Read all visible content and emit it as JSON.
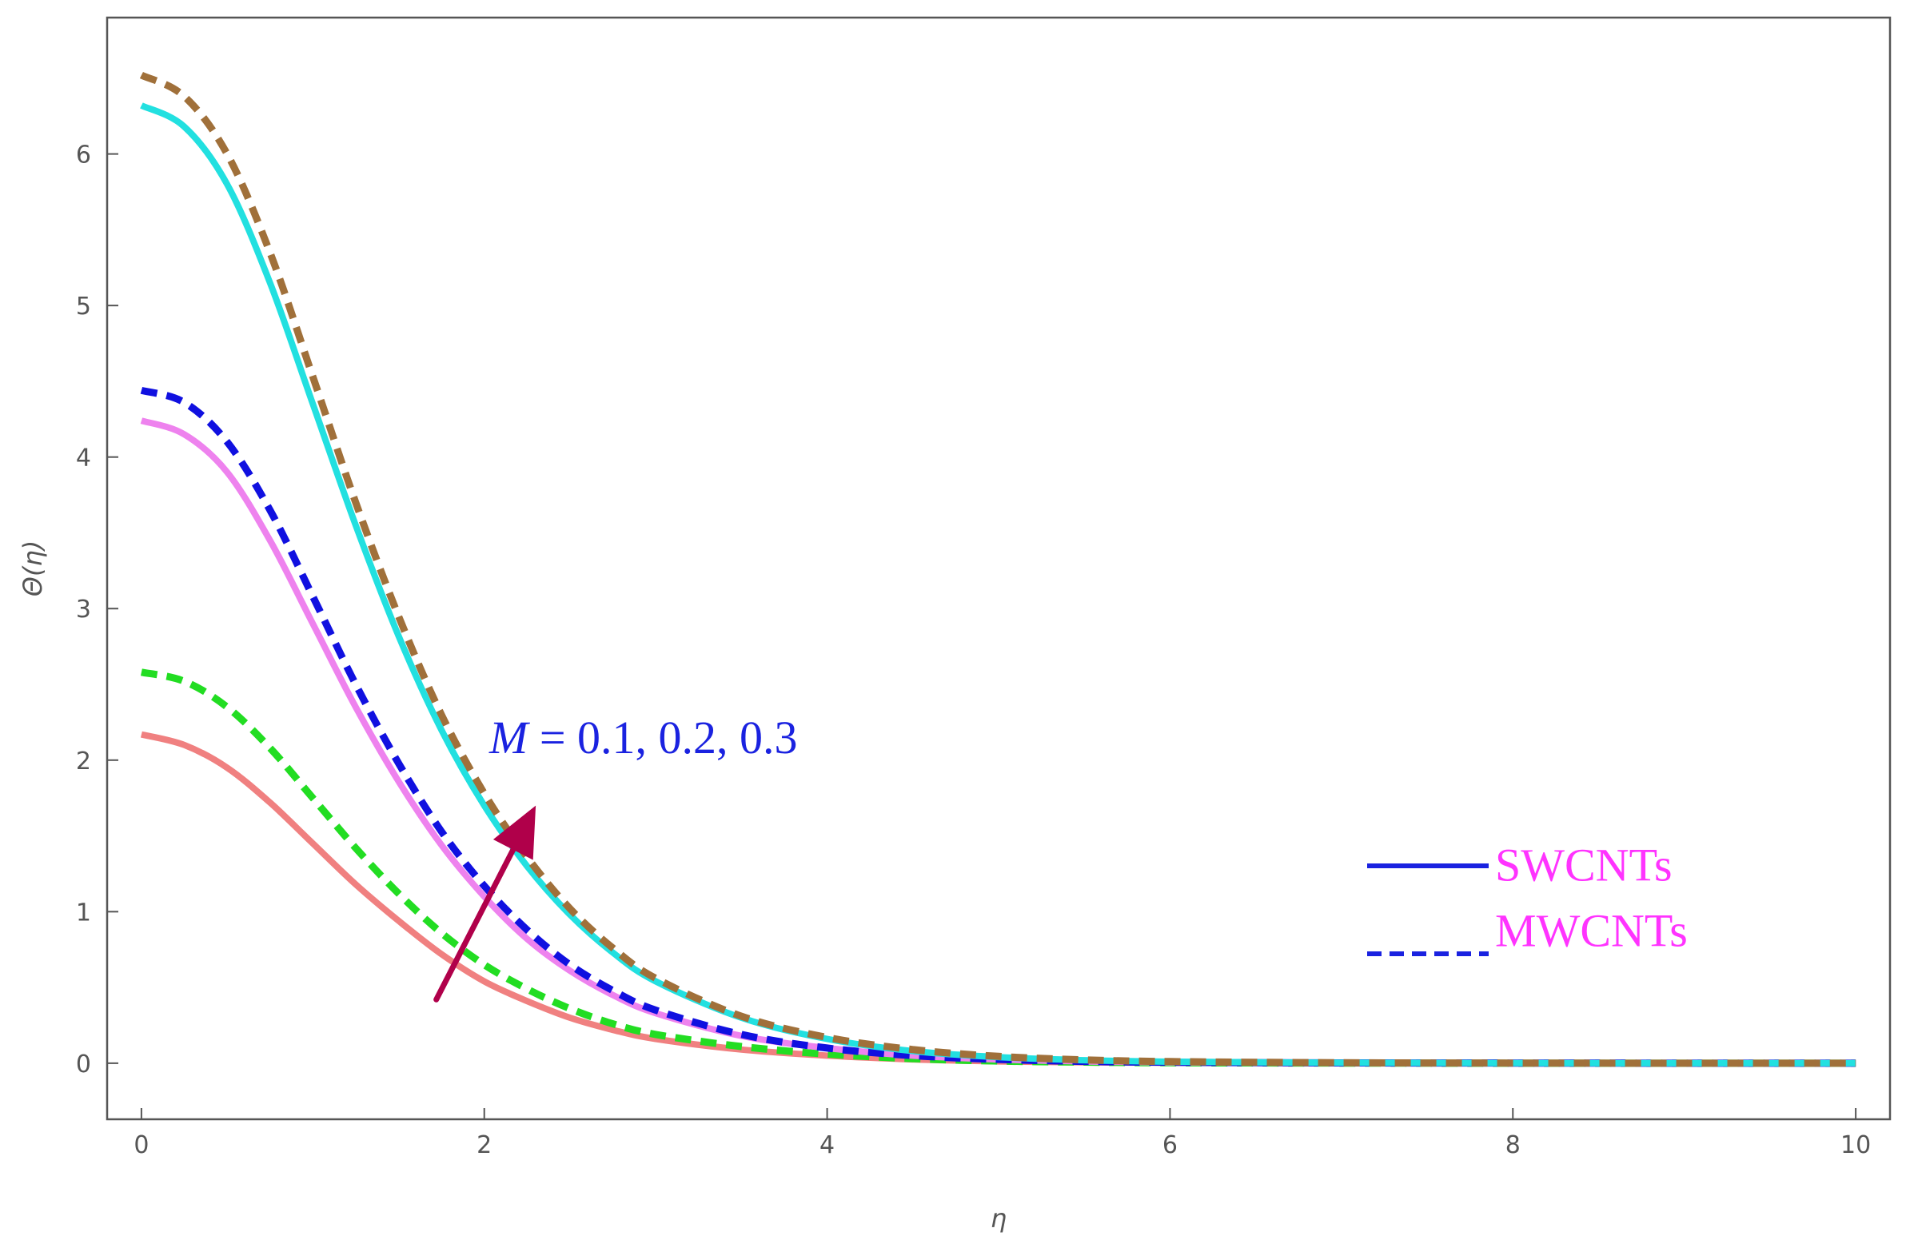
{
  "chart_data": {
    "type": "line",
    "title": "",
    "xlabel": "η",
    "ylabel": "Θ(η)",
    "xlim": [
      -0.2,
      10.2
    ],
    "ylim": [
      -0.37,
      6.9
    ],
    "xticks": [
      0,
      2,
      4,
      6,
      8,
      10
    ],
    "yticks": [
      0,
      1,
      2,
      3,
      4,
      5,
      6
    ],
    "grid": false,
    "legend": {
      "placement": "right",
      "entries": [
        {
          "name": "SWCNTs",
          "line_color": "#1a22e0",
          "style": "solid",
          "text_color": "#ff33ff"
        },
        {
          "name": "MWCNTs",
          "line_color": "#1a22e0",
          "style": "dashed",
          "text_color": "#ff33ff"
        }
      ]
    },
    "annotation": {
      "symbol": "M",
      "text": " = 0.1, 0.2, 0.3",
      "color": "#1a22e0",
      "arrow_color": "#b0004a",
      "arrow_from": [
        1.72,
        0.42
      ],
      "arrow_to": [
        2.3,
        1.7
      ]
    },
    "x": [
      0,
      0.25,
      0.5,
      0.75,
      1,
      1.25,
      1.5,
      1.75,
      2,
      2.25,
      2.5,
      2.75,
      3,
      3.5,
      4,
      4.5,
      5,
      5.5,
      6,
      7,
      8,
      9,
      10
    ],
    "series": [
      {
        "group": "SWCNTs",
        "style": "solid",
        "color": "#f08080",
        "values": [
          2.17,
          2.1,
          1.95,
          1.72,
          1.45,
          1.18,
          0.94,
          0.72,
          0.54,
          0.41,
          0.3,
          0.22,
          0.16,
          0.09,
          0.05,
          0.025,
          0.012,
          0.006,
          0.003,
          0.001,
          0,
          0,
          0
        ]
      },
      {
        "group": "MWCNTs",
        "style": "dashed",
        "color": "#22dd22",
        "values": [
          2.58,
          2.52,
          2.35,
          2.08,
          1.75,
          1.42,
          1.12,
          0.86,
          0.65,
          0.49,
          0.36,
          0.26,
          0.19,
          0.11,
          0.06,
          0.03,
          0.014,
          0.007,
          0.003,
          0.001,
          0,
          0,
          0
        ]
      },
      {
        "group": "SWCNTs",
        "style": "solid",
        "color": "#ee82ee",
        "values": [
          4.24,
          4.15,
          3.9,
          3.45,
          2.9,
          2.35,
          1.86,
          1.44,
          1.1,
          0.82,
          0.61,
          0.45,
          0.33,
          0.18,
          0.1,
          0.05,
          0.025,
          0.012,
          0.006,
          0.002,
          0.001,
          0,
          0
        ]
      },
      {
        "group": "MWCNTs",
        "style": "dashed",
        "color": "#1010e0",
        "values": [
          4.44,
          4.36,
          4.1,
          3.65,
          3.08,
          2.5,
          1.98,
          1.53,
          1.17,
          0.88,
          0.65,
          0.48,
          0.35,
          0.19,
          0.1,
          0.05,
          0.025,
          0.012,
          0.006,
          0.002,
          0.001,
          0,
          0
        ]
      },
      {
        "group": "SWCNTs",
        "style": "solid",
        "color": "#22e0e0",
        "values": [
          6.32,
          6.18,
          5.8,
          5.15,
          4.35,
          3.55,
          2.82,
          2.2,
          1.7,
          1.3,
          0.98,
          0.73,
          0.54,
          0.3,
          0.16,
          0.08,
          0.04,
          0.02,
          0.01,
          0.003,
          0.001,
          0,
          0
        ]
      },
      {
        "group": "MWCNTs",
        "style": "dashed",
        "color": "#a0703a",
        "values": [
          6.52,
          6.38,
          6.0,
          5.35,
          4.53,
          3.7,
          2.95,
          2.3,
          1.78,
          1.36,
          1.02,
          0.76,
          0.56,
          0.31,
          0.17,
          0.09,
          0.045,
          0.022,
          0.011,
          0.003,
          0.001,
          0,
          0
        ]
      }
    ]
  }
}
